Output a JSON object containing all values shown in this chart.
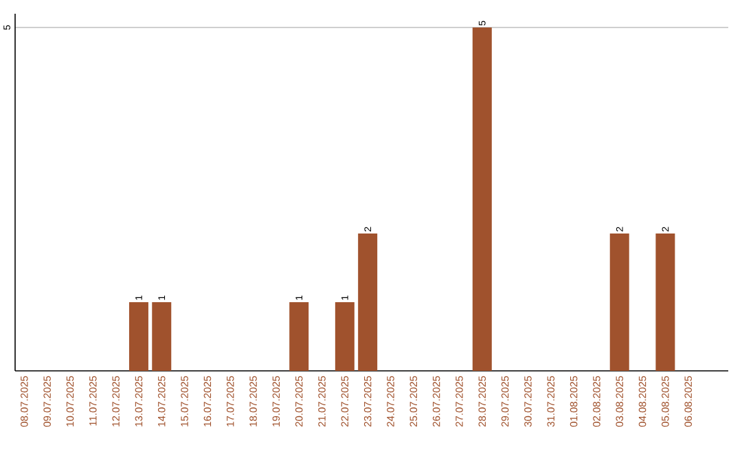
{
  "chart_data": {
    "type": "bar",
    "categories": [
      "08.07.2025",
      "09.07.2025",
      "10.07.2025",
      "11.07.2025",
      "12.07.2025",
      "13.07.2025",
      "14.07.2025",
      "15.07.2025",
      "16.07.2025",
      "17.07.2025",
      "18.07.2025",
      "19.07.2025",
      "20.07.2025",
      "21.07.2025",
      "22.07.2025",
      "23.07.2025",
      "24.07.2025",
      "25.07.2025",
      "26.07.2025",
      "27.07.2025",
      "28.07.2025",
      "29.07.2025",
      "30.07.2025",
      "31.07.2025",
      "01.08.2025",
      "02.08.2025",
      "03.08.2025",
      "04.08.2025",
      "05.08.2025",
      "06.08.2025"
    ],
    "values": [
      0,
      0,
      0,
      0,
      0,
      1,
      1,
      0,
      0,
      0,
      0,
      0,
      1,
      0,
      1,
      2,
      0,
      0,
      0,
      0,
      5,
      0,
      0,
      0,
      0,
      0,
      2,
      0,
      2,
      0
    ],
    "value_labels": [
      null,
      null,
      null,
      null,
      null,
      "1",
      "1",
      null,
      null,
      null,
      null,
      null,
      "1",
      null,
      "1",
      "2",
      null,
      null,
      null,
      null,
      "5",
      null,
      null,
      null,
      null,
      null,
      "2",
      null,
      "2",
      null
    ],
    "color": "#a0522d",
    "ylim": [
      0,
      5.2
    ],
    "yticks": [
      5
    ],
    "grid": "y"
  }
}
